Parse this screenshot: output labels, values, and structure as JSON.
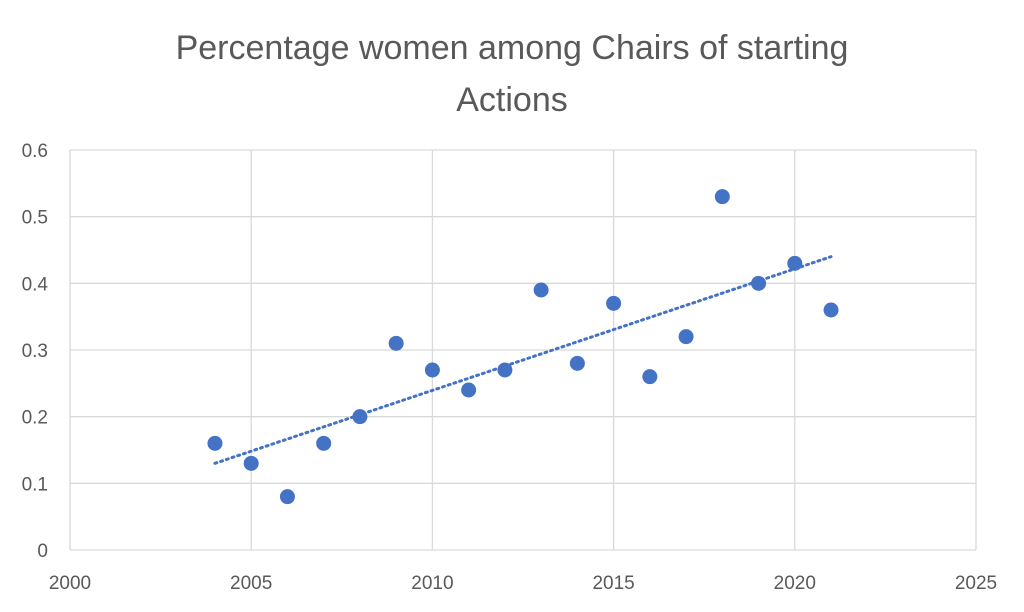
{
  "chart_data": {
    "type": "scatter",
    "title_lines": [
      "Percentage women among Chairs of starting",
      "Actions"
    ],
    "xlabel": "",
    "ylabel": "",
    "xlim": [
      2000,
      2025
    ],
    "ylim": [
      0,
      0.6
    ],
    "x_ticks": [
      2000,
      2005,
      2010,
      2015,
      2020,
      2025
    ],
    "y_ticks": [
      0,
      0.1,
      0.2,
      0.3,
      0.4,
      0.5,
      0.6
    ],
    "x_tick_labels": [
      "2000",
      "2005",
      "2010",
      "2015",
      "2020",
      "2025"
    ],
    "y_tick_labels": [
      "0",
      "0.1",
      "0.2",
      "0.3",
      "0.4",
      "0.5",
      "0.6"
    ],
    "grid": true,
    "legend": "none",
    "marker_color": "#4472c4",
    "trendline": {
      "type": "linear",
      "style": "dotted",
      "color": "#4472c4",
      "start": {
        "x": 2004,
        "y": 0.13
      },
      "end": {
        "x": 2021,
        "y": 0.44
      }
    },
    "series": [
      {
        "points": [
          {
            "x": 2004,
            "y": 0.16
          },
          {
            "x": 2005,
            "y": 0.13
          },
          {
            "x": 2006,
            "y": 0.08
          },
          {
            "x": 2007,
            "y": 0.16
          },
          {
            "x": 2008,
            "y": 0.2
          },
          {
            "x": 2009,
            "y": 0.31
          },
          {
            "x": 2010,
            "y": 0.27
          },
          {
            "x": 2011,
            "y": 0.24
          },
          {
            "x": 2012,
            "y": 0.27
          },
          {
            "x": 2013,
            "y": 0.39
          },
          {
            "x": 2014,
            "y": 0.28
          },
          {
            "x": 2015,
            "y": 0.37
          },
          {
            "x": 2016,
            "y": 0.26
          },
          {
            "x": 2017,
            "y": 0.32
          },
          {
            "x": 2018,
            "y": 0.53
          },
          {
            "x": 2019,
            "y": 0.4
          },
          {
            "x": 2020,
            "y": 0.43
          },
          {
            "x": 2021,
            "y": 0.36
          }
        ]
      }
    ]
  }
}
